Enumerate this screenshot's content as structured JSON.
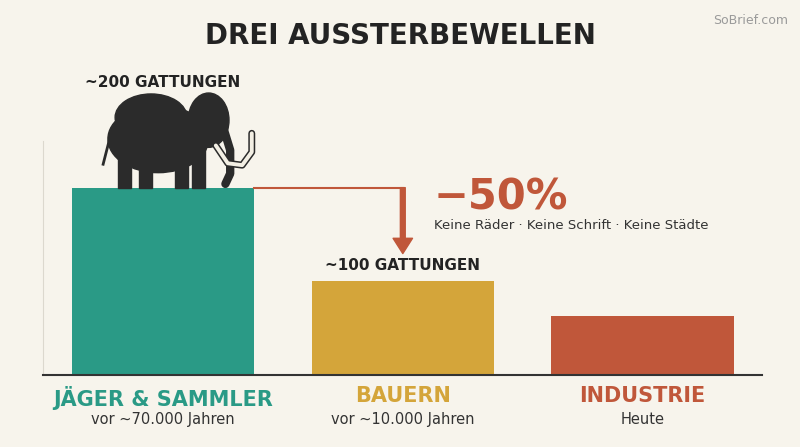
{
  "chart_data": {
    "type": "bar",
    "title": "DREI AUSSTERBEWELLEN",
    "source": "SoBrief.com",
    "categories": [
      "JÄGER & SAMMLER",
      "BAUERN",
      "INDUSTRIE"
    ],
    "periods": [
      "vor ~70.000 Jahren",
      "vor ~10.000 Jahren",
      "Heute"
    ],
    "values": [
      200,
      100,
      63
    ],
    "value_labels": [
      "~200 GATTUNGEN",
      "~100 GATTUNGEN",
      null
    ],
    "data_labels": true,
    "colors": [
      "#2a9a86",
      "#d4a53a",
      "#c0573a"
    ],
    "ylim": [
      0,
      250
    ],
    "yticks": [],
    "tick_labels": "x",
    "grid": false,
    "annotation": {
      "value": -50,
      "label": "−50%",
      "text": "Keine Räder · Keine Schrift · Keine Städte"
    }
  }
}
